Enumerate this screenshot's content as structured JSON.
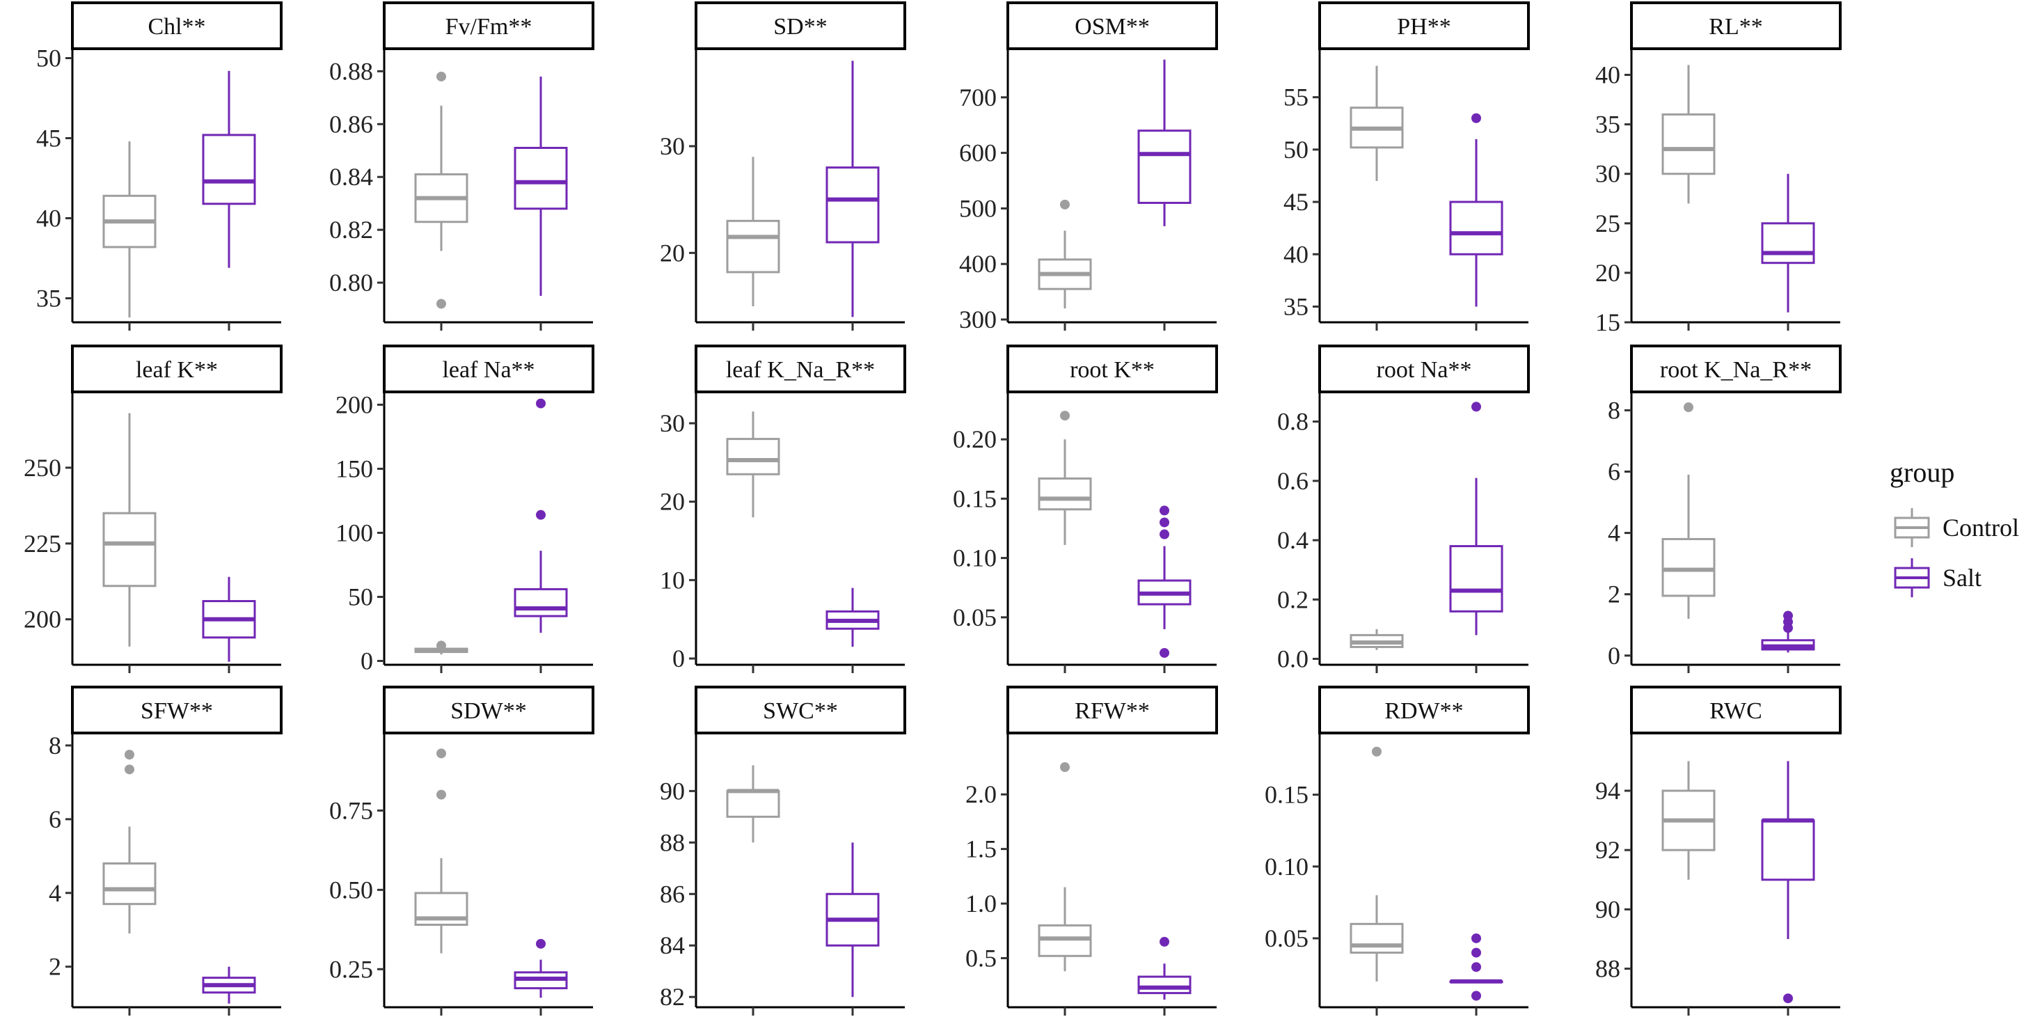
{
  "chart_data": {
    "type": "boxplot",
    "facet_layout": "3 rows x 6 columns",
    "groups": [
      {
        "name": "Control",
        "color": "#9e9e9e"
      },
      {
        "name": "Salt",
        "color": "#7127b5"
      }
    ],
    "legend": {
      "title": "group",
      "placement": "right"
    },
    "panels": [
      {
        "title": "Chl**",
        "ylim": [
          33.5,
          50.5
        ],
        "yticks": [
          35,
          40,
          45,
          50
        ],
        "tick_labels": [
          "35",
          "40",
          "45",
          "50"
        ],
        "boxes": [
          {
            "group": "Control",
            "whisker_low": 33.8,
            "q1": 38.2,
            "median": 39.8,
            "q3": 41.4,
            "whisker_high": 44.8,
            "outliers": []
          },
          {
            "group": "Salt",
            "whisker_low": 36.9,
            "q1": 40.9,
            "median": 42.3,
            "q3": 45.2,
            "whisker_high": 49.2,
            "outliers": []
          }
        ]
      },
      {
        "title": "Fv/Fm**",
        "ylim": [
          0.785,
          0.888
        ],
        "yticks": [
          0.8,
          0.82,
          0.84,
          0.86,
          0.88
        ],
        "tick_labels": [
          "0.80",
          "0.82",
          "0.84",
          "0.86",
          "0.88"
        ],
        "boxes": [
          {
            "group": "Control",
            "whisker_low": 0.812,
            "q1": 0.823,
            "median": 0.832,
            "q3": 0.841,
            "whisker_high": 0.867,
            "outliers": [
              0.792,
              0.878
            ]
          },
          {
            "group": "Salt",
            "whisker_low": 0.795,
            "q1": 0.828,
            "median": 0.838,
            "q3": 0.851,
            "whisker_high": 0.878,
            "outliers": []
          }
        ]
      },
      {
        "title": "SD**",
        "ylim": [
          13.5,
          39
        ],
        "yticks": [
          20,
          30
        ],
        "tick_labels": [
          "20",
          "30"
        ],
        "boxes": [
          {
            "group": "Control",
            "whisker_low": 15,
            "q1": 18.2,
            "median": 21.5,
            "q3": 23,
            "whisker_high": 29,
            "outliers": []
          },
          {
            "group": "Salt",
            "whisker_low": 14,
            "q1": 21,
            "median": 25,
            "q3": 28,
            "whisker_high": 38,
            "outliers": []
          }
        ]
      },
      {
        "title": "OSM**",
        "ylim": [
          295,
          785
        ],
        "yticks": [
          300,
          400,
          500,
          600,
          700
        ],
        "tick_labels": [
          "300",
          "400",
          "500",
          "600",
          "700"
        ],
        "boxes": [
          {
            "group": "Control",
            "whisker_low": 320,
            "q1": 355,
            "median": 382,
            "q3": 408,
            "whisker_high": 460,
            "outliers": [
              507
            ]
          },
          {
            "group": "Salt",
            "whisker_low": 468,
            "q1": 510,
            "median": 598,
            "q3": 640,
            "whisker_high": 768,
            "outliers": []
          }
        ]
      },
      {
        "title": "PH**",
        "ylim": [
          33.5,
          59.5
        ],
        "yticks": [
          35,
          40,
          45,
          50,
          55
        ],
        "tick_labels": [
          "35",
          "40",
          "45",
          "50",
          "55"
        ],
        "boxes": [
          {
            "group": "Control",
            "whisker_low": 47,
            "q1": 50.2,
            "median": 52,
            "q3": 54,
            "whisker_high": 58,
            "outliers": []
          },
          {
            "group": "Salt",
            "whisker_low": 35,
            "q1": 40,
            "median": 42,
            "q3": 45,
            "whisker_high": 51,
            "outliers": [
              53
            ]
          }
        ]
      },
      {
        "title": "RL**",
        "ylim": [
          15,
          42.5
        ],
        "yticks": [
          15,
          20,
          25,
          30,
          35,
          40
        ],
        "tick_labels": [
          "15",
          "20",
          "25",
          "30",
          "35",
          "40"
        ],
        "boxes": [
          {
            "group": "Control",
            "whisker_low": 27,
            "q1": 30,
            "median": 32.5,
            "q3": 36,
            "whisker_high": 41,
            "outliers": []
          },
          {
            "group": "Salt",
            "whisker_low": 16,
            "q1": 21,
            "median": 22,
            "q3": 25,
            "whisker_high": 30,
            "outliers": []
          }
        ]
      },
      {
        "title": "leaf K**",
        "ylim": [
          185,
          275
        ],
        "yticks": [
          200,
          225,
          250
        ],
        "tick_labels": [
          "200",
          "225",
          "250"
        ],
        "boxes": [
          {
            "group": "Control",
            "whisker_low": 191,
            "q1": 211,
            "median": 225,
            "q3": 235,
            "whisker_high": 268,
            "outliers": []
          },
          {
            "group": "Salt",
            "whisker_low": 186,
            "q1": 194,
            "median": 200,
            "q3": 206,
            "whisker_high": 214,
            "outliers": []
          }
        ]
      },
      {
        "title": "leaf Na**",
        "ylim": [
          -3,
          210
        ],
        "yticks": [
          0,
          50,
          100,
          150,
          200
        ],
        "tick_labels": [
          "0",
          "50",
          "100",
          "150",
          "200"
        ],
        "boxes": [
          {
            "group": "Control",
            "whisker_low": 5,
            "q1": 7,
            "median": 8,
            "q3": 9.5,
            "whisker_high": 11,
            "outliers": [
              12
            ]
          },
          {
            "group": "Salt",
            "whisker_low": 22,
            "q1": 35,
            "median": 41,
            "q3": 56,
            "whisker_high": 86,
            "outliers": [
              114,
              201
            ]
          }
        ]
      },
      {
        "title": "leaf K_Na_R**",
        "ylim": [
          -0.8,
          34
        ],
        "yticks": [
          0,
          10,
          20,
          30
        ],
        "tick_labels": [
          "0",
          "10",
          "20",
          "30"
        ],
        "boxes": [
          {
            "group": "Control",
            "whisker_low": 18,
            "q1": 23.5,
            "median": 25.3,
            "q3": 28,
            "whisker_high": 31.5,
            "outliers": []
          },
          {
            "group": "Salt",
            "whisker_low": 1.5,
            "q1": 3.8,
            "median": 4.8,
            "q3": 6,
            "whisker_high": 9,
            "outliers": []
          }
        ]
      },
      {
        "title": "root K**",
        "ylim": [
          0.01,
          0.24
        ],
        "yticks": [
          0.05,
          0.1,
          0.15,
          0.2
        ],
        "tick_labels": [
          "0.05",
          "0.10",
          "0.15",
          "0.20"
        ],
        "boxes": [
          {
            "group": "Control",
            "whisker_low": 0.111,
            "q1": 0.141,
            "median": 0.15,
            "q3": 0.167,
            "whisker_high": 0.2,
            "outliers": [
              0.22
            ]
          },
          {
            "group": "Salt",
            "whisker_low": 0.04,
            "q1": 0.061,
            "median": 0.07,
            "q3": 0.081,
            "whisker_high": 0.11,
            "outliers": [
              0.02,
              0.12,
              0.13,
              0.14
            ]
          }
        ]
      },
      {
        "title": "root Na**",
        "ylim": [
          -0.02,
          0.9
        ],
        "yticks": [
          0.0,
          0.2,
          0.4,
          0.6,
          0.8
        ],
        "tick_labels": [
          "0.0",
          "0.2",
          "0.4",
          "0.6",
          "0.8"
        ],
        "boxes": [
          {
            "group": "Control",
            "whisker_low": 0.03,
            "q1": 0.04,
            "median": 0.055,
            "q3": 0.08,
            "whisker_high": 0.1,
            "outliers": []
          },
          {
            "group": "Salt",
            "whisker_low": 0.08,
            "q1": 0.16,
            "median": 0.23,
            "q3": 0.38,
            "whisker_high": 0.61,
            "outliers": [
              0.85
            ]
          }
        ]
      },
      {
        "title": "root K_Na_R**",
        "ylim": [
          -0.3,
          8.6
        ],
        "yticks": [
          0,
          2,
          4,
          6,
          8
        ],
        "tick_labels": [
          "0",
          "2",
          "4",
          "6",
          "8"
        ],
        "boxes": [
          {
            "group": "Control",
            "whisker_low": 1.2,
            "q1": 1.95,
            "median": 2.8,
            "q3": 3.8,
            "whisker_high": 5.9,
            "outliers": [
              8.1
            ]
          },
          {
            "group": "Salt",
            "whisker_low": 0.1,
            "q1": 0.2,
            "median": 0.3,
            "q3": 0.5,
            "whisker_high": 0.8,
            "outliers": [
              0.9,
              1.1,
              1.3
            ]
          }
        ]
      },
      {
        "title": "SFW**",
        "ylim": [
          0.9,
          8.3
        ],
        "yticks": [
          2,
          4,
          6,
          8
        ],
        "tick_labels": [
          "2",
          "4",
          "6",
          "8"
        ],
        "boxes": [
          {
            "group": "Control",
            "whisker_low": 2.9,
            "q1": 3.7,
            "median": 4.1,
            "q3": 4.8,
            "whisker_high": 5.8,
            "outliers": [
              7.35,
              7.75
            ]
          },
          {
            "group": "Salt",
            "whisker_low": 1.0,
            "q1": 1.3,
            "median": 1.5,
            "q3": 1.7,
            "whisker_high": 2.0,
            "outliers": []
          }
        ]
      },
      {
        "title": "SDW**",
        "ylim": [
          0.13,
          0.99
        ],
        "yticks": [
          0.25,
          0.5,
          0.75
        ],
        "tick_labels": [
          "0.25",
          "0.50",
          "0.75"
        ],
        "boxes": [
          {
            "group": "Control",
            "whisker_low": 0.3,
            "q1": 0.39,
            "median": 0.41,
            "q3": 0.49,
            "whisker_high": 0.6,
            "outliers": [
              0.8,
              0.93
            ]
          },
          {
            "group": "Salt",
            "whisker_low": 0.16,
            "q1": 0.19,
            "median": 0.22,
            "q3": 0.24,
            "whisker_high": 0.28,
            "outliers": [
              0.33
            ]
          }
        ]
      },
      {
        "title": "SWC**",
        "ylim": [
          81.6,
          92.2
        ],
        "yticks": [
          82,
          84,
          86,
          88,
          90
        ],
        "tick_labels": [
          "82",
          "84",
          "86",
          "88",
          "90"
        ],
        "boxes": [
          {
            "group": "Control",
            "whisker_low": 88,
            "q1": 89,
            "median": 90,
            "q3": 90,
            "whisker_high": 91,
            "outliers": []
          },
          {
            "group": "Salt",
            "whisker_low": 82,
            "q1": 84,
            "median": 85,
            "q3": 86,
            "whisker_high": 88,
            "outliers": []
          }
        ]
      },
      {
        "title": "RFW**",
        "ylim": [
          0.05,
          2.55
        ],
        "yticks": [
          0.5,
          1.0,
          1.5,
          2.0
        ],
        "tick_labels": [
          "0.5",
          "1.0",
          "1.5",
          "2.0"
        ],
        "boxes": [
          {
            "group": "Control",
            "whisker_low": 0.38,
            "q1": 0.52,
            "median": 0.68,
            "q3": 0.8,
            "whisker_high": 1.15,
            "outliers": [
              2.25
            ]
          },
          {
            "group": "Salt",
            "whisker_low": 0.12,
            "q1": 0.18,
            "median": 0.23,
            "q3": 0.33,
            "whisker_high": 0.45,
            "outliers": [
              0.65
            ]
          }
        ]
      },
      {
        "title": "RDW**",
        "ylim": [
          0.002,
          0.192
        ],
        "yticks": [
          0.05,
          0.1,
          0.15
        ],
        "tick_labels": [
          "0.05",
          "0.10",
          "0.15"
        ],
        "boxes": [
          {
            "group": "Control",
            "whisker_low": 0.02,
            "q1": 0.04,
            "median": 0.045,
            "q3": 0.06,
            "whisker_high": 0.08,
            "outliers": [
              0.18
            ]
          },
          {
            "group": "Salt",
            "whisker_low": 0.02,
            "q1": 0.02,
            "median": 0.02,
            "q3": 0.02,
            "whisker_high": 0.02,
            "outliers": [
              0.01,
              0.03,
              0.04,
              0.05
            ]
          }
        ]
      },
      {
        "title": "RWC",
        "ylim": [
          86.7,
          95.9
        ],
        "yticks": [
          88,
          90,
          92,
          94
        ],
        "tick_labels": [
          "88",
          "90",
          "92",
          "94"
        ],
        "boxes": [
          {
            "group": "Control",
            "whisker_low": 91,
            "q1": 92,
            "median": 93,
            "q3": 94,
            "whisker_high": 95,
            "outliers": []
          },
          {
            "group": "Salt",
            "whisker_low": 89,
            "q1": 91,
            "median": 93,
            "q3": 93,
            "whisker_high": 95,
            "outliers": [
              87
            ]
          }
        ]
      }
    ]
  }
}
